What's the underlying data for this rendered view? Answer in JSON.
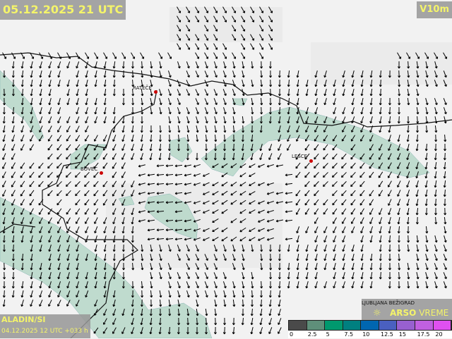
{
  "header": {
    "valid_time": "05.12.2025 21 UTC",
    "parameter": "V10m"
  },
  "model": {
    "name": "ALADIN/SI",
    "run": "04.12.2025 12 UTC +033 h"
  },
  "towns": [
    {
      "name": "RATEČE"
    },
    {
      "name": "BOVEC"
    },
    {
      "name": "LESCE"
    },
    {
      "name": "LJUBLJANA BEŽIGRAD"
    }
  ],
  "brand": {
    "bold": "ARSO",
    "rest": " VREME",
    "icon": "weather-logo-icon"
  },
  "legend": {
    "ticks": [
      "0",
      "2.5",
      "5",
      "7.5",
      "10",
      "12.5",
      "15",
      "17.5",
      "20"
    ],
    "colors": [
      "#4a4a4a",
      "#5f8f7a",
      "#00996e",
      "#008080",
      "#0066b0",
      "#4a60c0",
      "#9860d0",
      "#c060e0",
      "#e050f0"
    ]
  },
  "colors": {
    "label_text": "#f4f46a",
    "shading": "#b7d8c8",
    "station": "#cc0000"
  }
}
